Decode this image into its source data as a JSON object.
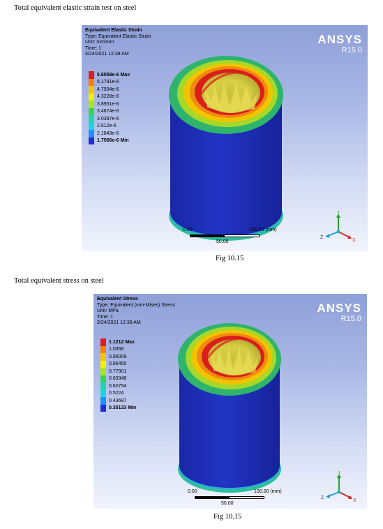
{
  "sections": [
    {
      "heading": "Total equivalent elastic strain test on steel",
      "caption": "Fig 10.15",
      "panel": {
        "title": "Equivalent Elastic Strain",
        "type": "Type: Equivalent Elastic Strain",
        "unit": "Unit: mm/mm",
        "time": "Time: 1",
        "date": "3/24/2021 12:38 AM",
        "legend": [
          {
            "label": "5.6058e-6 Max",
            "color": "#e41a1c",
            "bold": true
          },
          {
            "label": "5.1781e-6",
            "color": "#ff7f00",
            "bold": false
          },
          {
            "label": "4.7504e-6",
            "color": "#f5c400",
            "bold": false
          },
          {
            "label": "4.3228e-6",
            "color": "#f0f000",
            "bold": false
          },
          {
            "label": "3.8951e-6",
            "color": "#a8e61d",
            "bold": false
          },
          {
            "label": "3.4674e-6",
            "color": "#39d353",
            "bold": false
          },
          {
            "label": "3.0397e-6",
            "color": "#22d3b0",
            "bold": false
          },
          {
            "label": "2.612e-6",
            "color": "#1fd3e6",
            "bold": false
          },
          {
            "label": "2.1843e-6",
            "color": "#1e90ff",
            "bold": false
          },
          {
            "label": "1.7566e-6 Min",
            "color": "#1f2fd6",
            "bold": true
          }
        ],
        "logo": {
          "name": "ANSYS",
          "version": "R15.0"
        },
        "scale": {
          "left": "0.00",
          "right": "100.00 (mm)",
          "mid": "50.00"
        },
        "axes": {
          "x": "X",
          "y": "Y",
          "z": "Z"
        }
      }
    },
    {
      "heading": "Total equivalent stress on steel",
      "caption": "Fig 10.15",
      "panel": {
        "title": "Equivalent Stress",
        "type": "Type: Equivalent (von-Mises) Stress",
        "unit": "Unit: MPa",
        "time": "Time: 1",
        "date": "3/24/2021 12:38 AM",
        "legend": [
          {
            "label": "1.1212 Max",
            "color": "#e41a1c",
            "bold": true
          },
          {
            "label": "1.0356",
            "color": "#ff7f00",
            "bold": false
          },
          {
            "label": "0.95009",
            "color": "#f5c400",
            "bold": false
          },
          {
            "label": "0.86455",
            "color": "#f0f000",
            "bold": false
          },
          {
            "label": "0.77901",
            "color": "#a8e61d",
            "bold": false
          },
          {
            "label": "0.69348",
            "color": "#39d353",
            "bold": false
          },
          {
            "label": "0.60794",
            "color": "#22d3b0",
            "bold": false
          },
          {
            "label": "0.5224",
            "color": "#1fd3e6",
            "bold": false
          },
          {
            "label": "0.43687",
            "color": "#1e90ff",
            "bold": false
          },
          {
            "label": "0.35133 Min",
            "color": "#1f2fd6",
            "bold": true
          }
        ],
        "logo": {
          "name": "ANSYS",
          "version": "R15.0"
        },
        "scale": {
          "left": "0.00",
          "right": "100.00 (mm)",
          "mid": "50.00"
        },
        "axes": {
          "x": "X",
          "y": "Y",
          "z": "Z"
        }
      }
    }
  ]
}
